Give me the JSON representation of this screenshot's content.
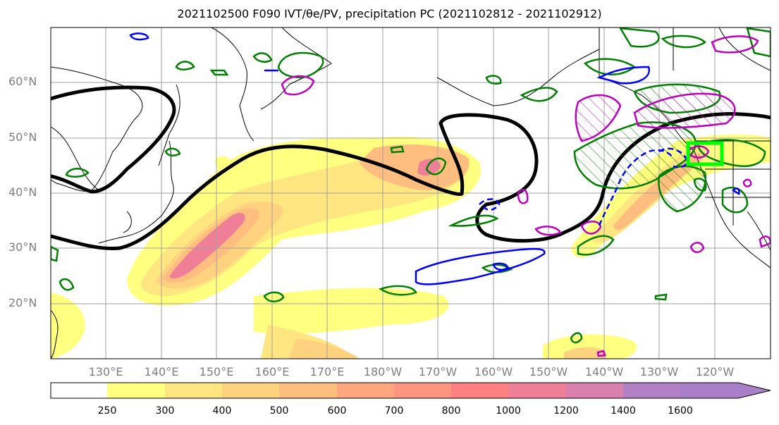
{
  "title": "2021102500 F090 IVT/θe/PV, precipitation PC (2021102812 - 2021102912)",
  "lat_labels": [
    "60°N",
    "50°N",
    "40°N",
    "30°N",
    "20°N"
  ],
  "lon_labels": [
    "130°E",
    "140°E",
    "150°E",
    "160°E",
    "170°E",
    "180°W",
    "170°W",
    "160°W",
    "150°W",
    "140°W",
    "130°W",
    "120°W"
  ],
  "colorbar": {
    "ticks": [
      "250",
      "300",
      "400",
      "500",
      "600",
      "700",
      "800",
      "1000",
      "1200",
      "1400",
      "1600"
    ],
    "colors": [
      "#ffffff",
      "#ffff80",
      "#ffe680",
      "#ffd280",
      "#ffbd80",
      "#ffa87f",
      "#ff9580",
      "#ff8080",
      "#ef7f96",
      "#da80ae",
      "#b281c5"
    ]
  },
  "map": {
    "extent": {
      "lon_min": 120,
      "lon_max": 250,
      "lat_min": 10,
      "lat_max": 70
    },
    "highlight_color": "#00ff00",
    "contour_colors": {
      "ivt": "#ffd24d",
      "theta_e": "#000000",
      "pv_pos": "#0000ff",
      "precip_green": "#008000",
      "precip_magenta": "#c000c0"
    }
  }
}
